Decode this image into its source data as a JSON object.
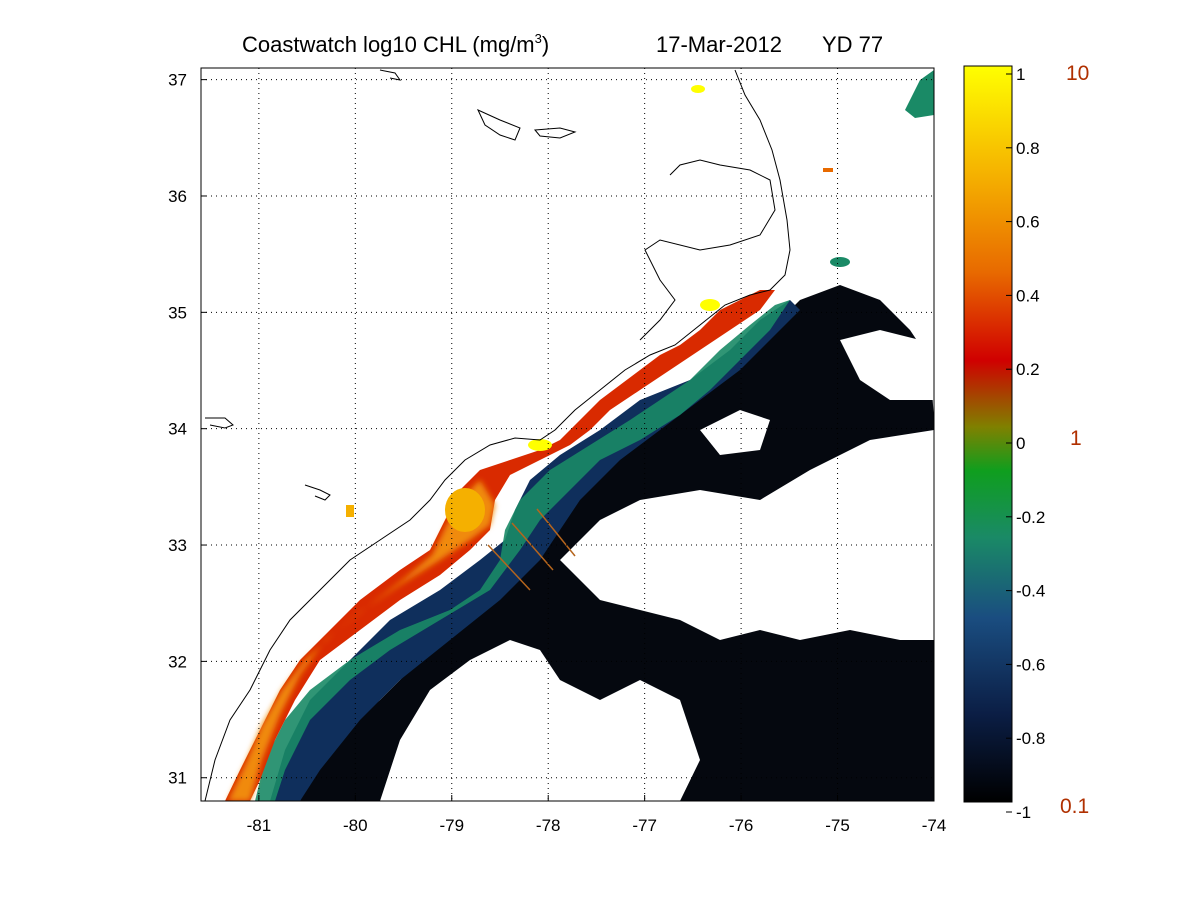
{
  "title": {
    "product": "Coastwatch  log10  CHL (mg/m",
    "unit_superscript": "3",
    "close_paren": ")",
    "date": "17-Mar-2012",
    "yearday": "YD 77"
  },
  "map": {
    "lon_range": [
      -81.6,
      -74.0
    ],
    "lat_range": [
      30.8,
      37.1
    ],
    "grid": "dotted",
    "x_ticks": [
      "-81",
      "-80",
      "-79",
      "-78",
      "-77",
      "-76",
      "-75",
      "-74"
    ],
    "y_ticks": [
      "31",
      "32",
      "33",
      "34",
      "35",
      "36",
      "37"
    ],
    "no_data_color": "#ffffff",
    "land_color": "#ffffff",
    "coastline_color": "#000000",
    "transect_color": "#b5651d"
  },
  "colorbar": {
    "range": [
      -1,
      1
    ],
    "tick_labels": [
      "1",
      "0.8",
      "0.6",
      "0.4",
      "0.2",
      "0",
      "-0.2",
      "-0.4",
      "-0.6",
      "-0.8",
      "-1"
    ],
    "linear_labels": [
      "10",
      "1",
      "0.1"
    ],
    "colors": [
      "#000000",
      "#0b1e45",
      "#1a4d80",
      "#1a8a66",
      "#0f9e1e",
      "#808000",
      "#d00000",
      "#e86a00",
      "#f5b000",
      "#ffff00"
    ]
  }
}
